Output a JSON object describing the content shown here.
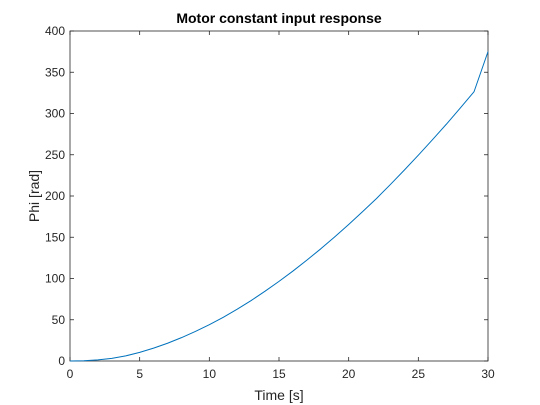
{
  "chart_data": {
    "type": "line",
    "title": "Motor constant input response",
    "xlabel": "Time [s]",
    "ylabel": "Phi [rad]",
    "xlim": [
      0,
      30
    ],
    "ylim": [
      0,
      400
    ],
    "xticks": [
      0,
      5,
      10,
      15,
      20,
      25,
      30
    ],
    "yticks": [
      0,
      50,
      100,
      150,
      200,
      250,
      300,
      350,
      400
    ],
    "grid": false,
    "series": [
      {
        "color": "#0072BD",
        "x": [
          0,
          1,
          2,
          3,
          4,
          5,
          6,
          7,
          8,
          9,
          10,
          11,
          12,
          13,
          14,
          15,
          16,
          17,
          18,
          19,
          20,
          21,
          22,
          23,
          24,
          25,
          26,
          27,
          28,
          29,
          30
        ],
        "y": [
          0,
          0.3,
          1.3,
          3.2,
          6.2,
          10.5,
          15.6,
          21.5,
          28.3,
          35.8,
          44,
          53,
          62.8,
          73.3,
          84.6,
          96.5,
          109,
          122.3,
          136,
          150.5,
          165.5,
          181,
          197,
          214,
          231.5,
          249.5,
          268,
          286.8,
          306.5,
          326.5,
          375
        ]
      }
    ],
    "colors": {
      "axes": "#262626",
      "line": "#0072BD"
    }
  }
}
